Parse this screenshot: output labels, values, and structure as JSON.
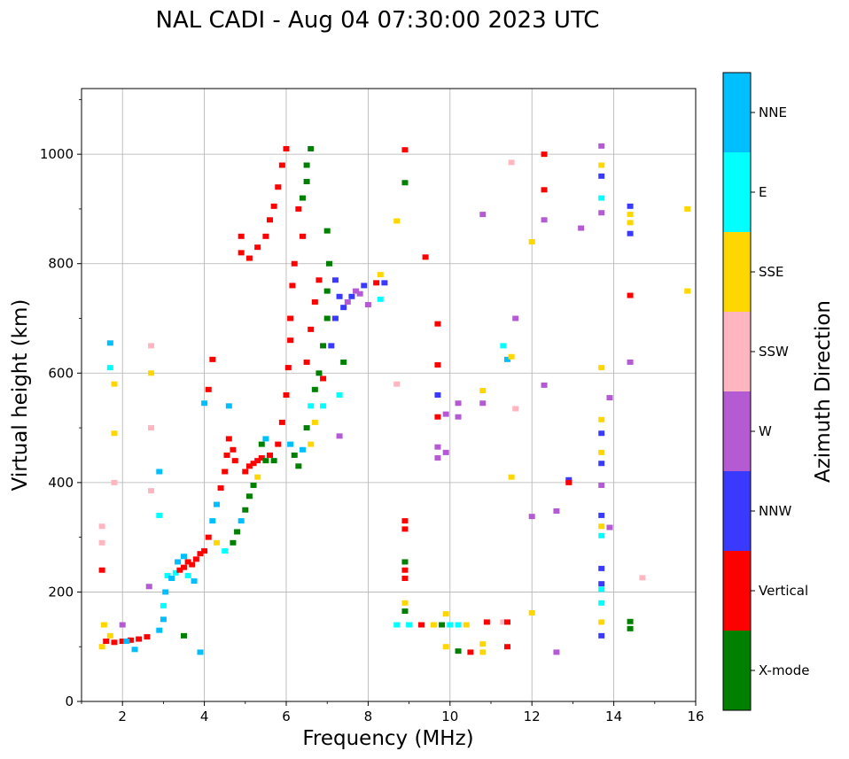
{
  "chart_data": {
    "type": "scatter",
    "title": "NAL CADI - Aug 04 07:30:00 2023 UTC",
    "xlabel": "Frequency (MHz)",
    "ylabel": "Virtual height (km)",
    "xlim": [
      1,
      16
    ],
    "ylim": [
      0,
      1120
    ],
    "xticks": [
      "2",
      "4",
      "6",
      "8",
      "10",
      "12",
      "14",
      "16"
    ],
    "yticks": [
      "0",
      "200",
      "400",
      "600",
      "800",
      "1000"
    ],
    "grid": true,
    "colorbar": {
      "label": "Azimuth Direction",
      "categories": [
        {
          "name": "X-mode",
          "color": "#008000"
        },
        {
          "name": "Vertical",
          "color": "#ff0000"
        },
        {
          "name": "NNW",
          "color": "#3a3aff"
        },
        {
          "name": "W",
          "color": "#b45ad2"
        },
        {
          "name": "SSW",
          "color": "#ffb6c1"
        },
        {
          "name": "SSE",
          "color": "#ffd700"
        },
        {
          "name": "E",
          "color": "#00ffff"
        },
        {
          "name": "NNE",
          "color": "#00bfff"
        }
      ]
    },
    "points": [
      {
        "x": 1.6,
        "y": 110,
        "c": "Vertical"
      },
      {
        "x": 1.8,
        "y": 108,
        "c": "Vertical"
      },
      {
        "x": 2.0,
        "y": 110,
        "c": "Vertical"
      },
      {
        "x": 2.2,
        "y": 112,
        "c": "Vertical"
      },
      {
        "x": 2.4,
        "y": 114,
        "c": "Vertical"
      },
      {
        "x": 2.6,
        "y": 118,
        "c": "Vertical"
      },
      {
        "x": 1.5,
        "y": 100,
        "c": "SSE"
      },
      {
        "x": 1.55,
        "y": 140,
        "c": "SSE"
      },
      {
        "x": 1.7,
        "y": 120,
        "c": "SSE"
      },
      {
        "x": 2.1,
        "y": 110,
        "c": "NNE"
      },
      {
        "x": 2.3,
        "y": 95,
        "c": "NNE"
      },
      {
        "x": 2.0,
        "y": 140,
        "c": "W"
      },
      {
        "x": 1.5,
        "y": 240,
        "c": "Vertical"
      },
      {
        "x": 1.5,
        "y": 290,
        "c": "SSW"
      },
      {
        "x": 1.5,
        "y": 320,
        "c": "SSW"
      },
      {
        "x": 1.8,
        "y": 400,
        "c": "SSW"
      },
      {
        "x": 1.7,
        "y": 610,
        "c": "E"
      },
      {
        "x": 1.7,
        "y": 655,
        "c": "NNE"
      },
      {
        "x": 1.8,
        "y": 580,
        "c": "SSE"
      },
      {
        "x": 1.8,
        "y": 490,
        "c": "SSE"
      },
      {
        "x": 2.7,
        "y": 500,
        "c": "SSW"
      },
      {
        "x": 2.7,
        "y": 650,
        "c": "SSW"
      },
      {
        "x": 2.7,
        "y": 600,
        "c": "SSE"
      },
      {
        "x": 2.7,
        "y": 385,
        "c": "SSW"
      },
      {
        "x": 2.65,
        "y": 210,
        "c": "W"
      },
      {
        "x": 2.9,
        "y": 340,
        "c": "E"
      },
      {
        "x": 2.9,
        "y": 420,
        "c": "NNE"
      },
      {
        "x": 2.9,
        "y": 130,
        "c": "NNE"
      },
      {
        "x": 3.0,
        "y": 150,
        "c": "NNE"
      },
      {
        "x": 3.0,
        "y": 175,
        "c": "E"
      },
      {
        "x": 3.05,
        "y": 200,
        "c": "NNE"
      },
      {
        "x": 3.1,
        "y": 230,
        "c": "E"
      },
      {
        "x": 3.2,
        "y": 225,
        "c": "NNE"
      },
      {
        "x": 3.3,
        "y": 235,
        "c": "E"
      },
      {
        "x": 3.4,
        "y": 240,
        "c": "Vertical"
      },
      {
        "x": 3.5,
        "y": 245,
        "c": "Vertical"
      },
      {
        "x": 3.6,
        "y": 255,
        "c": "Vertical"
      },
      {
        "x": 3.7,
        "y": 250,
        "c": "Vertical"
      },
      {
        "x": 3.8,
        "y": 260,
        "c": "Vertical"
      },
      {
        "x": 3.9,
        "y": 270,
        "c": "Vertical"
      },
      {
        "x": 4.0,
        "y": 275,
        "c": "Vertical"
      },
      {
        "x": 3.35,
        "y": 255,
        "c": "NNE"
      },
      {
        "x": 3.5,
        "y": 265,
        "c": "NNE"
      },
      {
        "x": 3.6,
        "y": 230,
        "c": "E"
      },
      {
        "x": 3.75,
        "y": 220,
        "c": "NNE"
      },
      {
        "x": 4.1,
        "y": 300,
        "c": "Vertical"
      },
      {
        "x": 4.2,
        "y": 330,
        "c": "NNE"
      },
      {
        "x": 4.3,
        "y": 360,
        "c": "NNE"
      },
      {
        "x": 4.4,
        "y": 390,
        "c": "Vertical"
      },
      {
        "x": 4.5,
        "y": 420,
        "c": "Vertical"
      },
      {
        "x": 4.55,
        "y": 450,
        "c": "Vertical"
      },
      {
        "x": 4.6,
        "y": 480,
        "c": "Vertical"
      },
      {
        "x": 4.6,
        "y": 540,
        "c": "NNE"
      },
      {
        "x": 4.7,
        "y": 460,
        "c": "Vertical"
      },
      {
        "x": 4.75,
        "y": 440,
        "c": "Vertical"
      },
      {
        "x": 4.3,
        "y": 290,
        "c": "SSE"
      },
      {
        "x": 4.5,
        "y": 275,
        "c": "E"
      },
      {
        "x": 4.7,
        "y": 290,
        "c": "X-mode"
      },
      {
        "x": 4.8,
        "y": 310,
        "c": "X-mode"
      },
      {
        "x": 4.9,
        "y": 330,
        "c": "NNE"
      },
      {
        "x": 5.0,
        "y": 350,
        "c": "X-mode"
      },
      {
        "x": 5.1,
        "y": 375,
        "c": "X-mode"
      },
      {
        "x": 5.2,
        "y": 395,
        "c": "X-mode"
      },
      {
        "x": 5.3,
        "y": 410,
        "c": "SSE"
      },
      {
        "x": 5.0,
        "y": 420,
        "c": "Vertical"
      },
      {
        "x": 5.1,
        "y": 430,
        "c": "Vertical"
      },
      {
        "x": 5.2,
        "y": 435,
        "c": "Vertical"
      },
      {
        "x": 5.3,
        "y": 440,
        "c": "Vertical"
      },
      {
        "x": 5.4,
        "y": 445,
        "c": "Vertical"
      },
      {
        "x": 5.5,
        "y": 440,
        "c": "X-mode"
      },
      {
        "x": 5.6,
        "y": 450,
        "c": "Vertical"
      },
      {
        "x": 5.4,
        "y": 470,
        "c": "X-mode"
      },
      {
        "x": 5.5,
        "y": 480,
        "c": "NNE"
      },
      {
        "x": 5.7,
        "y": 440,
        "c": "X-mode"
      },
      {
        "x": 5.8,
        "y": 470,
        "c": "Vertical"
      },
      {
        "x": 5.9,
        "y": 510,
        "c": "Vertical"
      },
      {
        "x": 6.0,
        "y": 560,
        "c": "Vertical"
      },
      {
        "x": 6.05,
        "y": 610,
        "c": "Vertical"
      },
      {
        "x": 6.1,
        "y": 660,
        "c": "Vertical"
      },
      {
        "x": 6.1,
        "y": 700,
        "c": "Vertical"
      },
      {
        "x": 6.15,
        "y": 760,
        "c": "Vertical"
      },
      {
        "x": 6.2,
        "y": 800,
        "c": "Vertical"
      },
      {
        "x": 6.1,
        "y": 470,
        "c": "NNE"
      },
      {
        "x": 6.2,
        "y": 450,
        "c": "X-mode"
      },
      {
        "x": 4.9,
        "y": 820,
        "c": "Vertical"
      },
      {
        "x": 5.1,
        "y": 810,
        "c": "Vertical"
      },
      {
        "x": 5.3,
        "y": 830,
        "c": "Vertical"
      },
      {
        "x": 5.5,
        "y": 850,
        "c": "Vertical"
      },
      {
        "x": 5.6,
        "y": 880,
        "c": "Vertical"
      },
      {
        "x": 5.7,
        "y": 905,
        "c": "Vertical"
      },
      {
        "x": 5.8,
        "y": 940,
        "c": "Vertical"
      },
      {
        "x": 5.9,
        "y": 980,
        "c": "Vertical"
      },
      {
        "x": 6.0,
        "y": 1010,
        "c": "Vertical"
      },
      {
        "x": 4.9,
        "y": 850,
        "c": "Vertical"
      },
      {
        "x": 6.4,
        "y": 920,
        "c": "X-mode"
      },
      {
        "x": 6.5,
        "y": 980,
        "c": "X-mode"
      },
      {
        "x": 6.6,
        "y": 1010,
        "c": "X-mode"
      },
      {
        "x": 6.5,
        "y": 950,
        "c": "X-mode"
      },
      {
        "x": 6.3,
        "y": 900,
        "c": "Vertical"
      },
      {
        "x": 6.4,
        "y": 850,
        "c": "Vertical"
      },
      {
        "x": 6.3,
        "y": 430,
        "c": "X-mode"
      },
      {
        "x": 6.4,
        "y": 460,
        "c": "NNE"
      },
      {
        "x": 6.5,
        "y": 500,
        "c": "X-mode"
      },
      {
        "x": 6.6,
        "y": 540,
        "c": "E"
      },
      {
        "x": 6.7,
        "y": 570,
        "c": "X-mode"
      },
      {
        "x": 6.8,
        "y": 600,
        "c": "X-mode"
      },
      {
        "x": 6.9,
        "y": 650,
        "c": "X-mode"
      },
      {
        "x": 7.0,
        "y": 700,
        "c": "X-mode"
      },
      {
        "x": 7.0,
        "y": 750,
        "c": "X-mode"
      },
      {
        "x": 7.05,
        "y": 800,
        "c": "X-mode"
      },
      {
        "x": 7.0,
        "y": 860,
        "c": "X-mode"
      },
      {
        "x": 6.5,
        "y": 620,
        "c": "Vertical"
      },
      {
        "x": 6.6,
        "y": 680,
        "c": "Vertical"
      },
      {
        "x": 6.7,
        "y": 730,
        "c": "Vertical"
      },
      {
        "x": 6.8,
        "y": 770,
        "c": "Vertical"
      },
      {
        "x": 6.9,
        "y": 590,
        "c": "Vertical"
      },
      {
        "x": 6.9,
        "y": 540,
        "c": "E"
      },
      {
        "x": 6.7,
        "y": 510,
        "c": "SSE"
      },
      {
        "x": 6.6,
        "y": 470,
        "c": "SSE"
      },
      {
        "x": 7.1,
        "y": 650,
        "c": "NNW"
      },
      {
        "x": 7.2,
        "y": 700,
        "c": "NNW"
      },
      {
        "x": 7.3,
        "y": 740,
        "c": "NNW"
      },
      {
        "x": 7.4,
        "y": 720,
        "c": "NNW"
      },
      {
        "x": 7.5,
        "y": 730,
        "c": "W"
      },
      {
        "x": 7.6,
        "y": 740,
        "c": "NNW"
      },
      {
        "x": 7.7,
        "y": 750,
        "c": "W"
      },
      {
        "x": 7.8,
        "y": 745,
        "c": "W"
      },
      {
        "x": 7.9,
        "y": 760,
        "c": "NNW"
      },
      {
        "x": 8.0,
        "y": 725,
        "c": "W"
      },
      {
        "x": 8.2,
        "y": 765,
        "c": "Vertical"
      },
      {
        "x": 8.4,
        "y": 765,
        "c": "NNW"
      },
      {
        "x": 8.3,
        "y": 780,
        "c": "SSE"
      },
      {
        "x": 8.3,
        "y": 735,
        "c": "E"
      },
      {
        "x": 7.2,
        "y": 770,
        "c": "NNW"
      },
      {
        "x": 7.4,
        "y": 620,
        "c": "X-mode"
      },
      {
        "x": 7.3,
        "y": 560,
        "c": "E"
      },
      {
        "x": 3.9,
        "y": 90,
        "c": "NNE"
      },
      {
        "x": 3.5,
        "y": 120,
        "c": "X-mode"
      },
      {
        "x": 4.2,
        "y": 625,
        "c": "Vertical"
      },
      {
        "x": 4.1,
        "y": 570,
        "c": "Vertical"
      },
      {
        "x": 4.0,
        "y": 545,
        "c": "NNE"
      },
      {
        "x": 7.3,
        "y": 485,
        "c": "W"
      },
      {
        "x": 8.7,
        "y": 140,
        "c": "E"
      },
      {
        "x": 9.0,
        "y": 140,
        "c": "E"
      },
      {
        "x": 9.3,
        "y": 140,
        "c": "Vertical"
      },
      {
        "x": 9.6,
        "y": 140,
        "c": "SSE"
      },
      {
        "x": 9.8,
        "y": 140,
        "c": "X-mode"
      },
      {
        "x": 10.0,
        "y": 140,
        "c": "E"
      },
      {
        "x": 10.2,
        "y": 140,
        "c": "E"
      },
      {
        "x": 10.4,
        "y": 140,
        "c": "SSE"
      },
      {
        "x": 10.9,
        "y": 145,
        "c": "Vertical"
      },
      {
        "x": 11.3,
        "y": 145,
        "c": "SSW"
      },
      {
        "x": 11.4,
        "y": 145,
        "c": "Vertical"
      },
      {
        "x": 8.9,
        "y": 1008,
        "c": "Vertical"
      },
      {
        "x": 8.9,
        "y": 948,
        "c": "X-mode"
      },
      {
        "x": 8.7,
        "y": 878,
        "c": "SSE"
      },
      {
        "x": 9.4,
        "y": 812,
        "c": "Vertical"
      },
      {
        "x": 8.7,
        "y": 580,
        "c": "SSW"
      },
      {
        "x": 8.9,
        "y": 330,
        "c": "Vertical"
      },
      {
        "x": 8.9,
        "y": 315,
        "c": "Vertical"
      },
      {
        "x": 8.9,
        "y": 255,
        "c": "X-mode"
      },
      {
        "x": 8.9,
        "y": 240,
        "c": "Vertical"
      },
      {
        "x": 8.9,
        "y": 225,
        "c": "Vertical"
      },
      {
        "x": 8.9,
        "y": 180,
        "c": "SSE"
      },
      {
        "x": 8.9,
        "y": 165,
        "c": "X-mode"
      },
      {
        "x": 9.7,
        "y": 690,
        "c": "Vertical"
      },
      {
        "x": 9.7,
        "y": 615,
        "c": "Vertical"
      },
      {
        "x": 9.7,
        "y": 560,
        "c": "NNW"
      },
      {
        "x": 9.7,
        "y": 520,
        "c": "Vertical"
      },
      {
        "x": 9.7,
        "y": 465,
        "c": "W"
      },
      {
        "x": 9.7,
        "y": 445,
        "c": "W"
      },
      {
        "x": 9.9,
        "y": 525,
        "c": "W"
      },
      {
        "x": 9.9,
        "y": 455,
        "c": "W"
      },
      {
        "x": 10.2,
        "y": 545,
        "c": "W"
      },
      {
        "x": 10.2,
        "y": 520,
        "c": "W"
      },
      {
        "x": 10.8,
        "y": 545,
        "c": "W"
      },
      {
        "x": 10.8,
        "y": 568,
        "c": "SSE"
      },
      {
        "x": 10.8,
        "y": 890,
        "c": "W"
      },
      {
        "x": 9.9,
        "y": 100,
        "c": "SSE"
      },
      {
        "x": 10.2,
        "y": 92,
        "c": "X-mode"
      },
      {
        "x": 10.5,
        "y": 90,
        "c": "Vertical"
      },
      {
        "x": 10.8,
        "y": 90,
        "c": "SSE"
      },
      {
        "x": 10.8,
        "y": 105,
        "c": "SSE"
      },
      {
        "x": 11.4,
        "y": 100,
        "c": "Vertical"
      },
      {
        "x": 9.9,
        "y": 160,
        "c": "SSE"
      },
      {
        "x": 11.5,
        "y": 985,
        "c": "SSW"
      },
      {
        "x": 11.3,
        "y": 650,
        "c": "E"
      },
      {
        "x": 11.4,
        "y": 625,
        "c": "NNE"
      },
      {
        "x": 11.5,
        "y": 630,
        "c": "SSE"
      },
      {
        "x": 11.6,
        "y": 700,
        "c": "W"
      },
      {
        "x": 11.6,
        "y": 535,
        "c": "SSW"
      },
      {
        "x": 11.5,
        "y": 410,
        "c": "SSE"
      },
      {
        "x": 12.3,
        "y": 1000,
        "c": "Vertical"
      },
      {
        "x": 12.3,
        "y": 935,
        "c": "Vertical"
      },
      {
        "x": 12.3,
        "y": 880,
        "c": "W"
      },
      {
        "x": 12.0,
        "y": 840,
        "c": "SSE"
      },
      {
        "x": 12.3,
        "y": 578,
        "c": "W"
      },
      {
        "x": 12.0,
        "y": 338,
        "c": "W"
      },
      {
        "x": 12.6,
        "y": 348,
        "c": "W"
      },
      {
        "x": 12.0,
        "y": 162,
        "c": "SSE"
      },
      {
        "x": 12.6,
        "y": 90,
        "c": "W"
      },
      {
        "x": 12.9,
        "y": 405,
        "c": "NNW"
      },
      {
        "x": 12.9,
        "y": 400,
        "c": "Vertical"
      },
      {
        "x": 13.2,
        "y": 865,
        "c": "W"
      },
      {
        "x": 13.7,
        "y": 1015,
        "c": "W"
      },
      {
        "x": 13.7,
        "y": 980,
        "c": "SSE"
      },
      {
        "x": 13.7,
        "y": 960,
        "c": "NNW"
      },
      {
        "x": 13.7,
        "y": 920,
        "c": "E"
      },
      {
        "x": 13.7,
        "y": 893,
        "c": "W"
      },
      {
        "x": 13.7,
        "y": 610,
        "c": "SSE"
      },
      {
        "x": 13.7,
        "y": 515,
        "c": "SSE"
      },
      {
        "x": 13.7,
        "y": 490,
        "c": "NNW"
      },
      {
        "x": 13.7,
        "y": 455,
        "c": "SSE"
      },
      {
        "x": 13.7,
        "y": 435,
        "c": "NNW"
      },
      {
        "x": 13.7,
        "y": 395,
        "c": "W"
      },
      {
        "x": 13.7,
        "y": 340,
        "c": "NNW"
      },
      {
        "x": 13.7,
        "y": 320,
        "c": "SSE"
      },
      {
        "x": 13.7,
        "y": 303,
        "c": "E"
      },
      {
        "x": 13.7,
        "y": 243,
        "c": "NNW"
      },
      {
        "x": 13.7,
        "y": 215,
        "c": "NNW"
      },
      {
        "x": 13.7,
        "y": 205,
        "c": "E"
      },
      {
        "x": 13.7,
        "y": 180,
        "c": "E"
      },
      {
        "x": 13.7,
        "y": 145,
        "c": "SSE"
      },
      {
        "x": 13.7,
        "y": 120,
        "c": "NNW"
      },
      {
        "x": 13.9,
        "y": 555,
        "c": "W"
      },
      {
        "x": 13.9,
        "y": 318,
        "c": "W"
      },
      {
        "x": 14.4,
        "y": 905,
        "c": "NNW"
      },
      {
        "x": 14.4,
        "y": 890,
        "c": "SSE"
      },
      {
        "x": 14.4,
        "y": 875,
        "c": "SSE"
      },
      {
        "x": 14.4,
        "y": 855,
        "c": "NNW"
      },
      {
        "x": 14.4,
        "y": 742,
        "c": "Vertical"
      },
      {
        "x": 14.4,
        "y": 620,
        "c": "W"
      },
      {
        "x": 14.4,
        "y": 146,
        "c": "X-mode"
      },
      {
        "x": 14.4,
        "y": 133,
        "c": "X-mode"
      },
      {
        "x": 14.7,
        "y": 226,
        "c": "SSW"
      },
      {
        "x": 15.8,
        "y": 900,
        "c": "SSE"
      },
      {
        "x": 15.8,
        "y": 750,
        "c": "SSE"
      }
    ]
  }
}
